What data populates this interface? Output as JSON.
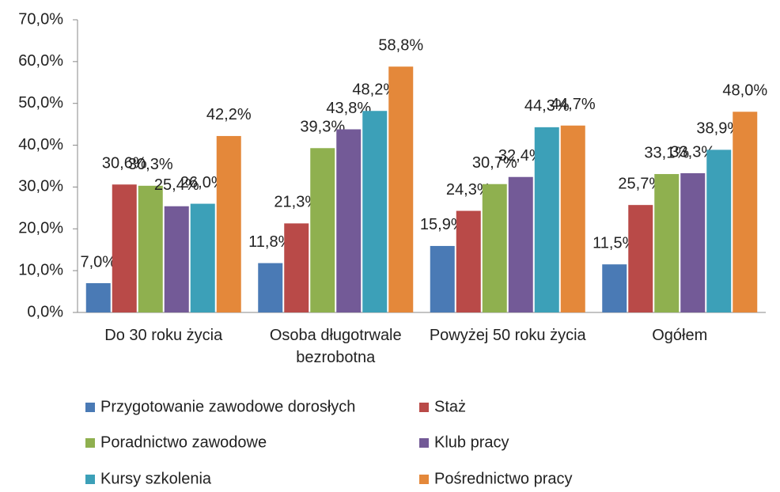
{
  "chart_data": {
    "type": "bar",
    "categories": [
      "Do 30 roku życia",
      "Osoba długotrwale bezrobotna",
      "Powyżej 50 roku życia",
      "Ogółem"
    ],
    "series": [
      {
        "name": "Przygotowanie zawodowe dorosłych",
        "color": "#4a7ab5",
        "values": [
          7.0,
          11.8,
          15.9,
          11.5
        ],
        "value_labels": [
          "7,0%",
          "11,8%",
          "15,9%",
          "11,5%"
        ]
      },
      {
        "name": "Staż",
        "color": "#b94a48",
        "values": [
          30.6,
          21.3,
          24.3,
          25.7
        ],
        "value_labels": [
          "30,6%",
          "21,3%",
          "24,3%",
          "25,7%"
        ]
      },
      {
        "name": "Poradnictwo zawodowe",
        "color": "#8fb04f",
        "values": [
          30.3,
          39.3,
          30.7,
          33.1
        ],
        "value_labels": [
          "30,3%",
          "39,3%",
          "30,7%",
          "33,1%"
        ]
      },
      {
        "name": "Klub pracy",
        "color": "#735a97",
        "values": [
          25.4,
          43.8,
          32.4,
          33.3
        ],
        "value_labels": [
          "25,4%",
          "43,8%",
          "32,4%",
          "33,3%"
        ]
      },
      {
        "name": "Kursy szkolenia",
        "color": "#3ca0b8",
        "values": [
          26.0,
          48.2,
          44.3,
          38.9
        ],
        "value_labels": [
          "26,0%",
          "48,2%",
          "44,3%",
          "38,9%"
        ]
      },
      {
        "name": "Pośrednictwo pracy",
        "color": "#e4883a",
        "values": [
          42.2,
          58.8,
          44.7,
          48.0
        ],
        "value_labels": [
          "42,2%",
          "58,8%",
          "44,7%",
          "48,0%"
        ]
      }
    ],
    "ylim": [
      0,
      70
    ],
    "yticks": [
      {
        "value": 0,
        "label": "0,0%"
      },
      {
        "value": 10,
        "label": "10,0%"
      },
      {
        "value": 20,
        "label": "20,0%"
      },
      {
        "value": 30,
        "label": "30,0%"
      },
      {
        "value": 40,
        "label": "40,0%"
      },
      {
        "value": 50,
        "label": "50,0%"
      },
      {
        "value": 60,
        "label": "60,0%"
      },
      {
        "value": 70,
        "label": "70,0%"
      }
    ],
    "legend": "bottom"
  }
}
